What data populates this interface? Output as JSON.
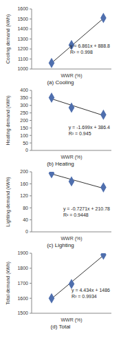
{
  "chart_data": [
    {
      "type": "scatter",
      "title": "(a) Cooling",
      "x_label": "WWR (%)",
      "y_label": "Cooling demand (kWh)",
      "x": [
        25,
        50,
        90
      ],
      "values": [
        1060,
        1240,
        1510
      ],
      "trendline": {
        "x": [
          25,
          90
        ],
        "values": [
          1060,
          1506
        ]
      },
      "annotations": [
        "y = 6.861x + 888.8",
        "R² = 0.998"
      ],
      "xlim": [
        0,
        100
      ],
      "ylim": [
        1000,
        1600
      ],
      "yticks": [
        1000,
        1100,
        1200,
        1300,
        1400,
        1500,
        1600
      ],
      "color": "#4f6fae",
      "marker": "diamond",
      "tick_labels": "y",
      "grid": false
    },
    {
      "type": "scatter",
      "title": "(b) Heating",
      "x_label": "WWR (%)",
      "y_label": "Heating demand (kWh)",
      "x": [
        25,
        50,
        90
      ],
      "values": [
        352,
        285,
        238
      ],
      "trendline": {
        "x": [
          25,
          90
        ],
        "values": [
          344,
          233
        ]
      },
      "annotations": [
        "y = -1.699x + 386.4",
        "R² = 0.945"
      ],
      "xlim": [
        0,
        100
      ],
      "ylim": [
        0,
        400
      ],
      "yticks": [
        0,
        50,
        100,
        150,
        200,
        250,
        300,
        350,
        400
      ],
      "color": "#4f6fae",
      "marker": "diamond",
      "tick_labels": "y",
      "grid": false
    },
    {
      "type": "scatter",
      "title": "(c) Lighting",
      "x_label": "WWR (%)",
      "y_label": "Lighting demand (kWh)",
      "x": [
        25,
        50,
        90
      ],
      "values": [
        195,
        168,
        148
      ],
      "trendline": {
        "x": [
          25,
          90
        ],
        "values": [
          193,
          145
        ]
      },
      "annotations": [
        "y = -0.7271x + 210.78",
        "R² = 0.9448"
      ],
      "xlim": [
        0,
        100
      ],
      "ylim": [
        0,
        200
      ],
      "yticks": [
        0,
        40,
        80,
        120,
        160,
        200
      ],
      "color": "#4f6fae",
      "marker": "diamond",
      "tick_labels": "y",
      "grid": false
    },
    {
      "type": "scatter",
      "title": "(d) Total",
      "x_label": "WWR (%)",
      "y_label": "Total demand (kWh)",
      "x": [
        25,
        50,
        90
      ],
      "values": [
        1600,
        1695,
        1890
      ],
      "trendline": {
        "x": [
          25,
          90
        ],
        "values": [
          1597,
          1885
        ]
      },
      "annotations": [
        "y = 4.434x + 1486",
        "R² = 0.9934"
      ],
      "xlim": [
        0,
        100
      ],
      "ylim": [
        1500,
        1900
      ],
      "yticks": [
        1500,
        1600,
        1700,
        1800,
        1900
      ],
      "color": "#4f6fae",
      "marker": "diamond",
      "tick_labels": "y",
      "grid": false
    }
  ]
}
